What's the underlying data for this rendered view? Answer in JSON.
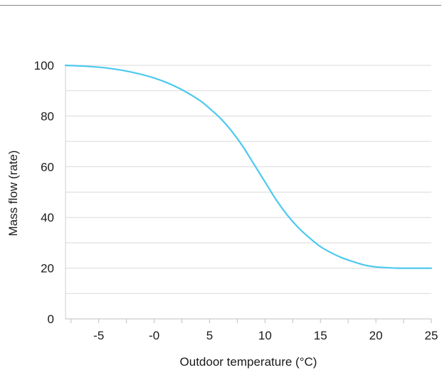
{
  "chart_data": {
    "type": "line",
    "title": "",
    "xlabel": "Outdoor temperature (°C)",
    "ylabel": "Mass flow (rate)",
    "xlim": [
      -8,
      25
    ],
    "ylim": [
      0,
      100
    ],
    "x_ticks": [
      -5,
      0,
      5,
      10,
      15,
      20,
      25
    ],
    "x_tick_labels": [
      "-5",
      "-0",
      "5",
      "10",
      "15",
      "20",
      "25"
    ],
    "y_ticks": [
      0,
      20,
      40,
      60,
      80,
      100
    ],
    "y_tick_labels": [
      "0",
      "20",
      "40",
      "60",
      "80",
      "100"
    ],
    "grid": true,
    "legend": "none",
    "series": [
      {
        "color": "#4cc9ef",
        "x": [
          -8,
          -6,
          -4,
          -2,
          0,
          2,
          4,
          5,
          6,
          7,
          8,
          9,
          10,
          11,
          12,
          13,
          14,
          15,
          16,
          17,
          18,
          19,
          20,
          21,
          22,
          23,
          24,
          25
        ],
        "y": [
          100,
          99.6,
          98.8,
          97.3,
          95,
          91.5,
          86.5,
          83,
          79,
          74,
          68,
          61,
          54,
          47,
          41,
          36,
          32,
          28.5,
          26,
          24,
          22.5,
          21.2,
          20.5,
          20.2,
          20,
          20,
          20,
          20
        ]
      }
    ]
  }
}
